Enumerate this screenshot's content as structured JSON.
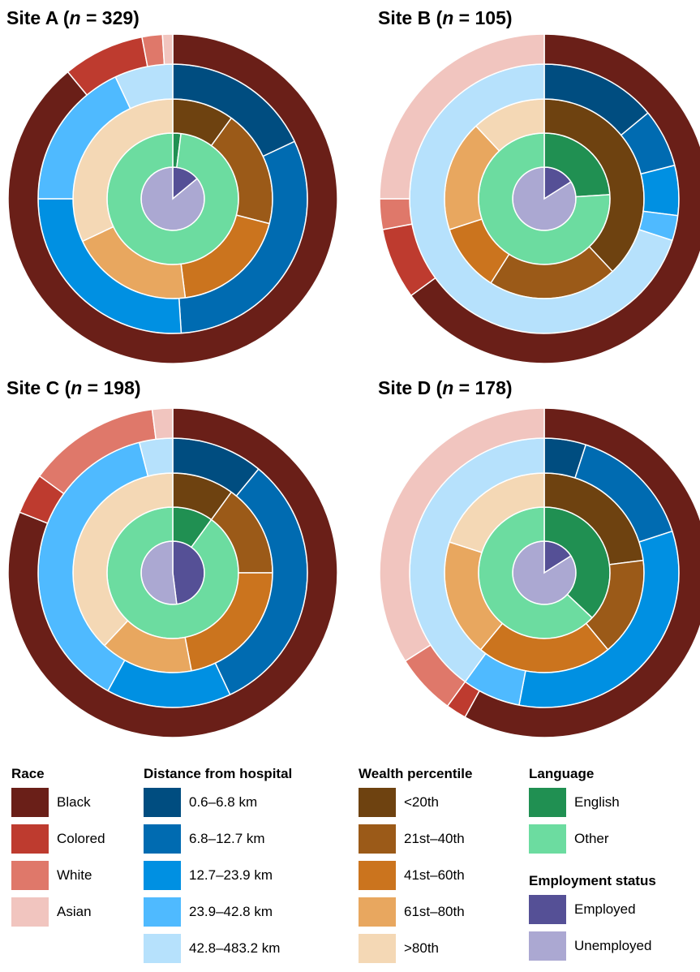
{
  "colors": {
    "race": [
      "#6a1f18",
      "#be3b2f",
      "#df786a",
      "#f1c5bf"
    ],
    "distance": [
      "#004d80",
      "#006bb1",
      "#0090e2",
      "#4fbaff",
      "#b6e1fc"
    ],
    "wealth": [
      "#6e4210",
      "#9b5a18",
      "#cb741e",
      "#e8a75f",
      "#f4d8b5"
    ],
    "language": [
      "#209052",
      "#6cdca0"
    ],
    "employment": [
      "#555096",
      "#aba8d2"
    ]
  },
  "legend": {
    "race": {
      "title": "Race",
      "items": [
        "Black",
        "Colored",
        "White",
        "Asian"
      ]
    },
    "distance": {
      "title": "Distance from hospital",
      "items": [
        "0.6–6.8 km",
        "6.8–12.7 km",
        "12.7–23.9 km",
        "23.9–42.8 km",
        "42.8–483.2 km"
      ]
    },
    "wealth": {
      "title": "Wealth percentile",
      "items": [
        "<20th",
        "21st–40th",
        "41st–60th",
        "61st–80th",
        ">80th"
      ]
    },
    "language": {
      "title": "Language",
      "items": [
        "English",
        "Other"
      ]
    },
    "employment": {
      "title": "Employment status",
      "items": [
        "Employed",
        "Unemployed"
      ]
    }
  },
  "chart_data": [
    {
      "type": "pie",
      "title": "Site A (n = 329)",
      "title_prefix": "Site A (",
      "title_n": "n",
      "title_suffix": " = 329)",
      "rings": {
        "employment": [
          0.14,
          0.86
        ],
        "language": [
          0.02,
          0.98
        ],
        "wealth": [
          0.1,
          0.19,
          0.19,
          0.2,
          0.32
        ],
        "distance": [
          0.18,
          0.31,
          0.26,
          0.18,
          0.07
        ],
        "race": [
          0.89,
          0.08,
          0.02,
          0.01
        ]
      }
    },
    {
      "type": "pie",
      "title": "Site B (n = 105)",
      "title_prefix": "Site B (",
      "title_n": "n",
      "title_suffix": " = 105)",
      "rings": {
        "employment": [
          0.16,
          0.84
        ],
        "language": [
          0.24,
          0.76
        ],
        "wealth": [
          0.38,
          0.21,
          0.11,
          0.18,
          0.12
        ],
        "distance": [
          0.14,
          0.07,
          0.06,
          0.03,
          0.7
        ],
        "race": [
          0.65,
          0.07,
          0.03,
          0.25
        ]
      }
    },
    {
      "type": "pie",
      "title": "Site C (n = 198)",
      "title_prefix": "Site C (",
      "title_n": "n",
      "title_suffix": " = 198)",
      "rings": {
        "employment": [
          0.48,
          0.52
        ],
        "language": [
          0.1,
          0.9
        ],
        "wealth": [
          0.1,
          0.15,
          0.22,
          0.15,
          0.38
        ],
        "distance": [
          0.11,
          0.32,
          0.15,
          0.38,
          0.04
        ],
        "race": [
          0.81,
          0.04,
          0.13,
          0.02
        ]
      }
    },
    {
      "type": "pie",
      "title": "Site D (n = 178)",
      "title_prefix": "Site D (",
      "title_n": "n",
      "title_suffix": " = 178)",
      "rings": {
        "employment": [
          0.16,
          0.84
        ],
        "language": [
          0.37,
          0.63
        ],
        "wealth": [
          0.23,
          0.16,
          0.22,
          0.19,
          0.2
        ],
        "distance": [
          0.05,
          0.15,
          0.33,
          0.07,
          0.4
        ],
        "race": [
          0.58,
          0.02,
          0.06,
          0.34
        ]
      }
    }
  ]
}
